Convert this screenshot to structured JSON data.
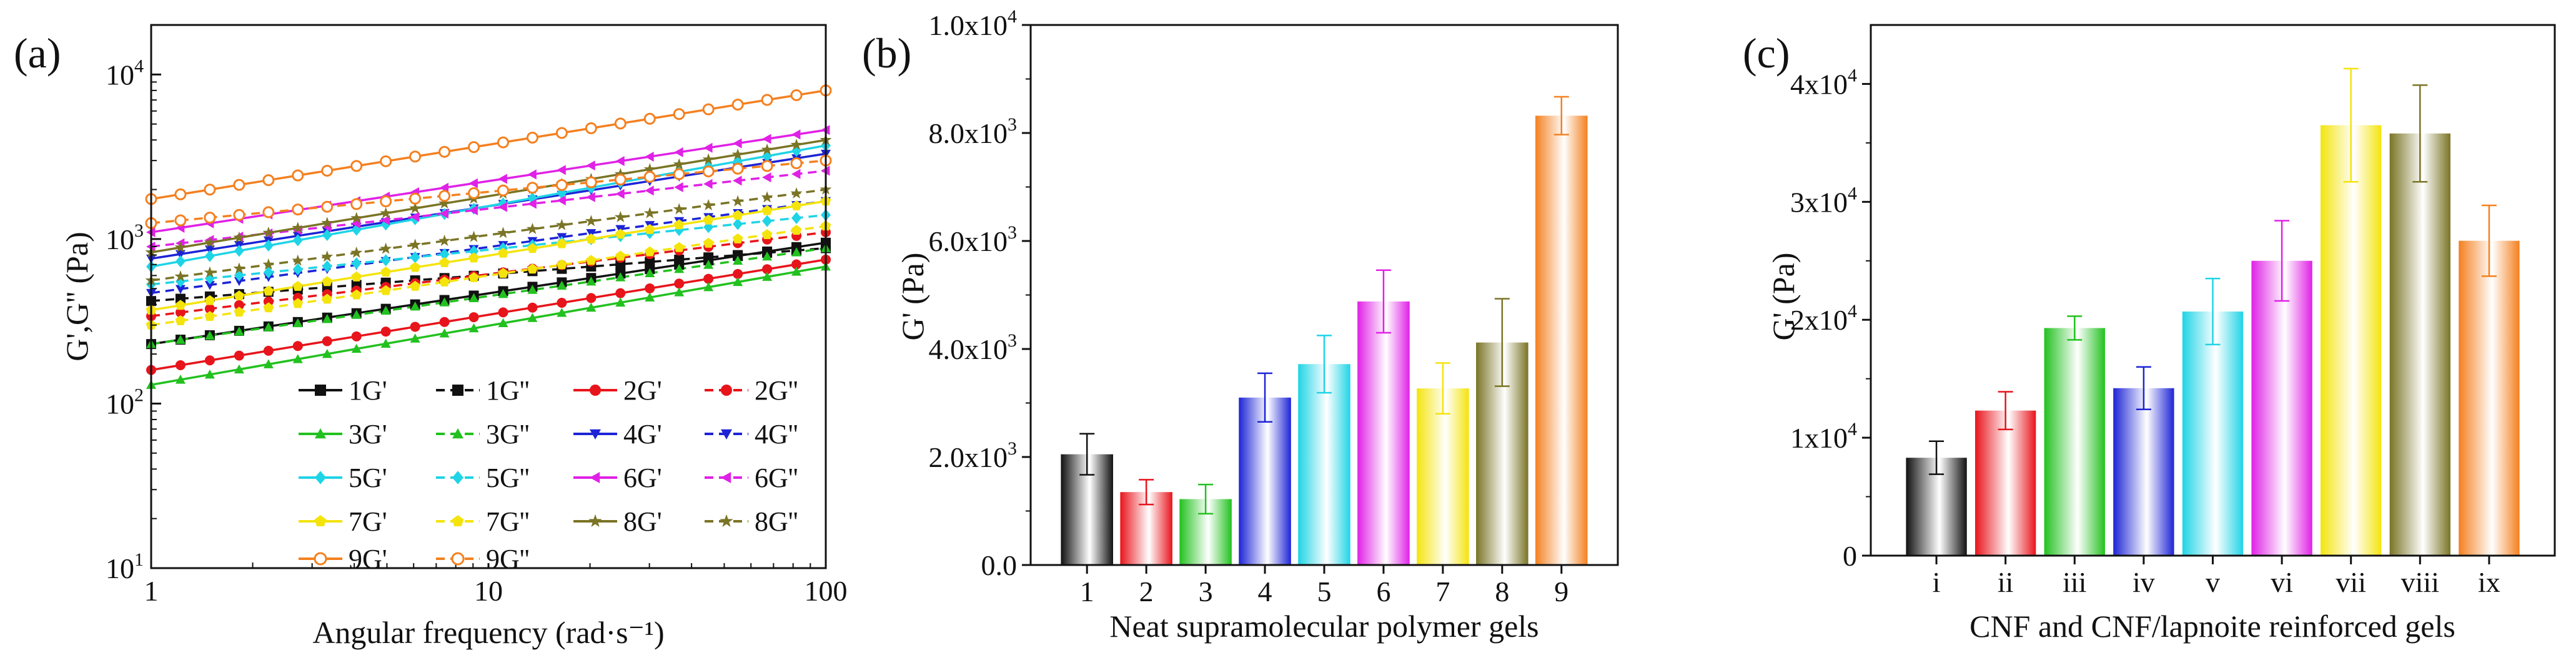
{
  "chart_data": [
    {
      "panel_label": "(a)",
      "type": "line",
      "title": "",
      "xlabel": "Angular frequency (rad·s⁻¹)",
      "ylabel": "G',G'' (Pa)",
      "xscale": "log",
      "yscale": "log",
      "xlim": [
        1,
        100
      ],
      "ylim": [
        10,
        20000
      ],
      "xticks": [
        {
          "value": 1,
          "label": "1"
        },
        {
          "value": 10,
          "label": "10"
        },
        {
          "value": 100,
          "label": "100"
        }
      ],
      "yticks": [
        {
          "value": 10,
          "base": "10",
          "exp": "1"
        },
        {
          "value": 100,
          "base": "10",
          "exp": "2"
        },
        {
          "value": 1000,
          "base": "10",
          "exp": "3"
        },
        {
          "value": 10000,
          "base": "10",
          "exp": "4"
        }
      ],
      "legend_position": "bottom-right",
      "series": [
        {
          "name": "1G'",
          "color": "#111111",
          "marker": "square",
          "dashed": false,
          "start": 230,
          "end": 950
        },
        {
          "name": "1G''",
          "color": "#111111",
          "marker": "square",
          "dashed": true,
          "start": 420,
          "end": 880
        },
        {
          "name": "2G'",
          "color": "#e8141b",
          "marker": "circle",
          "dashed": false,
          "start": 160,
          "end": 750
        },
        {
          "name": "2G''",
          "color": "#e8141b",
          "marker": "circle",
          "dashed": true,
          "start": 340,
          "end": 1100
        },
        {
          "name": "3G'",
          "color": "#22c11f",
          "marker": "triangle-up",
          "dashed": false,
          "start": 130,
          "end": 680
        },
        {
          "name": "3G''",
          "color": "#22c11f",
          "marker": "triangle-up",
          "dashed": true,
          "start": 230,
          "end": 880
        },
        {
          "name": "4G'",
          "color": "#1d24d6",
          "marker": "triangle-down",
          "dashed": false,
          "start": 760,
          "end": 3300
        },
        {
          "name": "4G''",
          "color": "#1d24d6",
          "marker": "triangle-down",
          "dashed": true,
          "start": 470,
          "end": 1700
        },
        {
          "name": "5G'",
          "color": "#1fd4e6",
          "marker": "diamond",
          "dashed": false,
          "start": 680,
          "end": 3700
        },
        {
          "name": "5G''",
          "color": "#1fd4e6",
          "marker": "diamond",
          "dashed": true,
          "start": 530,
          "end": 1400
        },
        {
          "name": "6G'",
          "color": "#e021e6",
          "marker": "triangle-left",
          "dashed": false,
          "start": 1100,
          "end": 4600
        },
        {
          "name": "6G''",
          "color": "#e021e6",
          "marker": "triangle-left",
          "dashed": true,
          "start": 900,
          "end": 2600
        },
        {
          "name": "7G'",
          "color": "#f4e40c",
          "marker": "pentagon",
          "dashed": false,
          "start": 370,
          "end": 1700
        },
        {
          "name": "7G''",
          "color": "#f4e40c",
          "marker": "pentagon",
          "dashed": true,
          "start": 300,
          "end": 1200
        },
        {
          "name": "8G'",
          "color": "#7a7425",
          "marker": "star",
          "dashed": false,
          "start": 830,
          "end": 4000
        },
        {
          "name": "8G''",
          "color": "#7a7425",
          "marker": "star",
          "dashed": true,
          "start": 560,
          "end": 2000
        },
        {
          "name": "9G'",
          "color": "#f4801f",
          "marker": "circle-open",
          "dashed": false,
          "start": 1750,
          "end": 8000
        },
        {
          "name": "9G''",
          "color": "#f4801f",
          "marker": "circle-open",
          "dashed": true,
          "start": 1250,
          "end": 3000
        }
      ]
    },
    {
      "panel_label": "(b)",
      "type": "bar",
      "title": "",
      "xlabel": "Neat supramolecular polymer gels",
      "ylabel": "G' (Pa)",
      "ylim": [
        0,
        10000
      ],
      "yticks": [
        {
          "value": 0,
          "mant": "0.0",
          "exp": ""
        },
        {
          "value": 2000,
          "mant": "2.0",
          "exp": "3"
        },
        {
          "value": 4000,
          "mant": "4.0",
          "exp": "3"
        },
        {
          "value": 6000,
          "mant": "6.0",
          "exp": "3"
        },
        {
          "value": 8000,
          "mant": "8.0",
          "exp": "3"
        },
        {
          "value": 10000,
          "mant": "1.0",
          "exp": "4"
        }
      ],
      "categories": [
        "1",
        "2",
        "3",
        "4",
        "5",
        "6",
        "7",
        "8",
        "9"
      ],
      "values": [
        2050,
        1350,
        1220,
        3100,
        3720,
        4880,
        3270,
        4120,
        8320
      ],
      "errors": [
        380,
        230,
        270,
        450,
        530,
        580,
        470,
        810,
        350
      ],
      "colors": [
        "#111111",
        "#e8141b",
        "#22c11f",
        "#1d24d6",
        "#1fd4e6",
        "#e021e6",
        "#f4e40c",
        "#7a7425",
        "#f4801f"
      ]
    },
    {
      "panel_label": "(c)",
      "type": "bar",
      "title": "",
      "xlabel": "CNF and CNF/lapnoite reinforced gels",
      "ylabel": "G' (Pa)",
      "ylim": [
        0,
        45000
      ],
      "yticks": [
        {
          "value": 0,
          "mant": "0",
          "exp": ""
        },
        {
          "value": 10000,
          "mant": "1",
          "exp": "4"
        },
        {
          "value": 20000,
          "mant": "2",
          "exp": "4"
        },
        {
          "value": 30000,
          "mant": "3",
          "exp": "4"
        },
        {
          "value": 40000,
          "mant": "4",
          "exp": "4"
        }
      ],
      "categories": [
        "i",
        "ii",
        "iii",
        "iv",
        "v",
        "vi",
        "vii",
        "viii",
        "ix"
      ],
      "values": [
        8300,
        12300,
        19300,
        14200,
        20700,
        25000,
        36500,
        35800,
        26700
      ],
      "errors": [
        1400,
        1600,
        1000,
        1800,
        2800,
        3400,
        4800,
        4100,
        3000
      ],
      "colors": [
        "#111111",
        "#e8141b",
        "#22c11f",
        "#1d24d6",
        "#1fd4e6",
        "#e021e6",
        "#f4e40c",
        "#7a7425",
        "#f4801f"
      ]
    }
  ]
}
